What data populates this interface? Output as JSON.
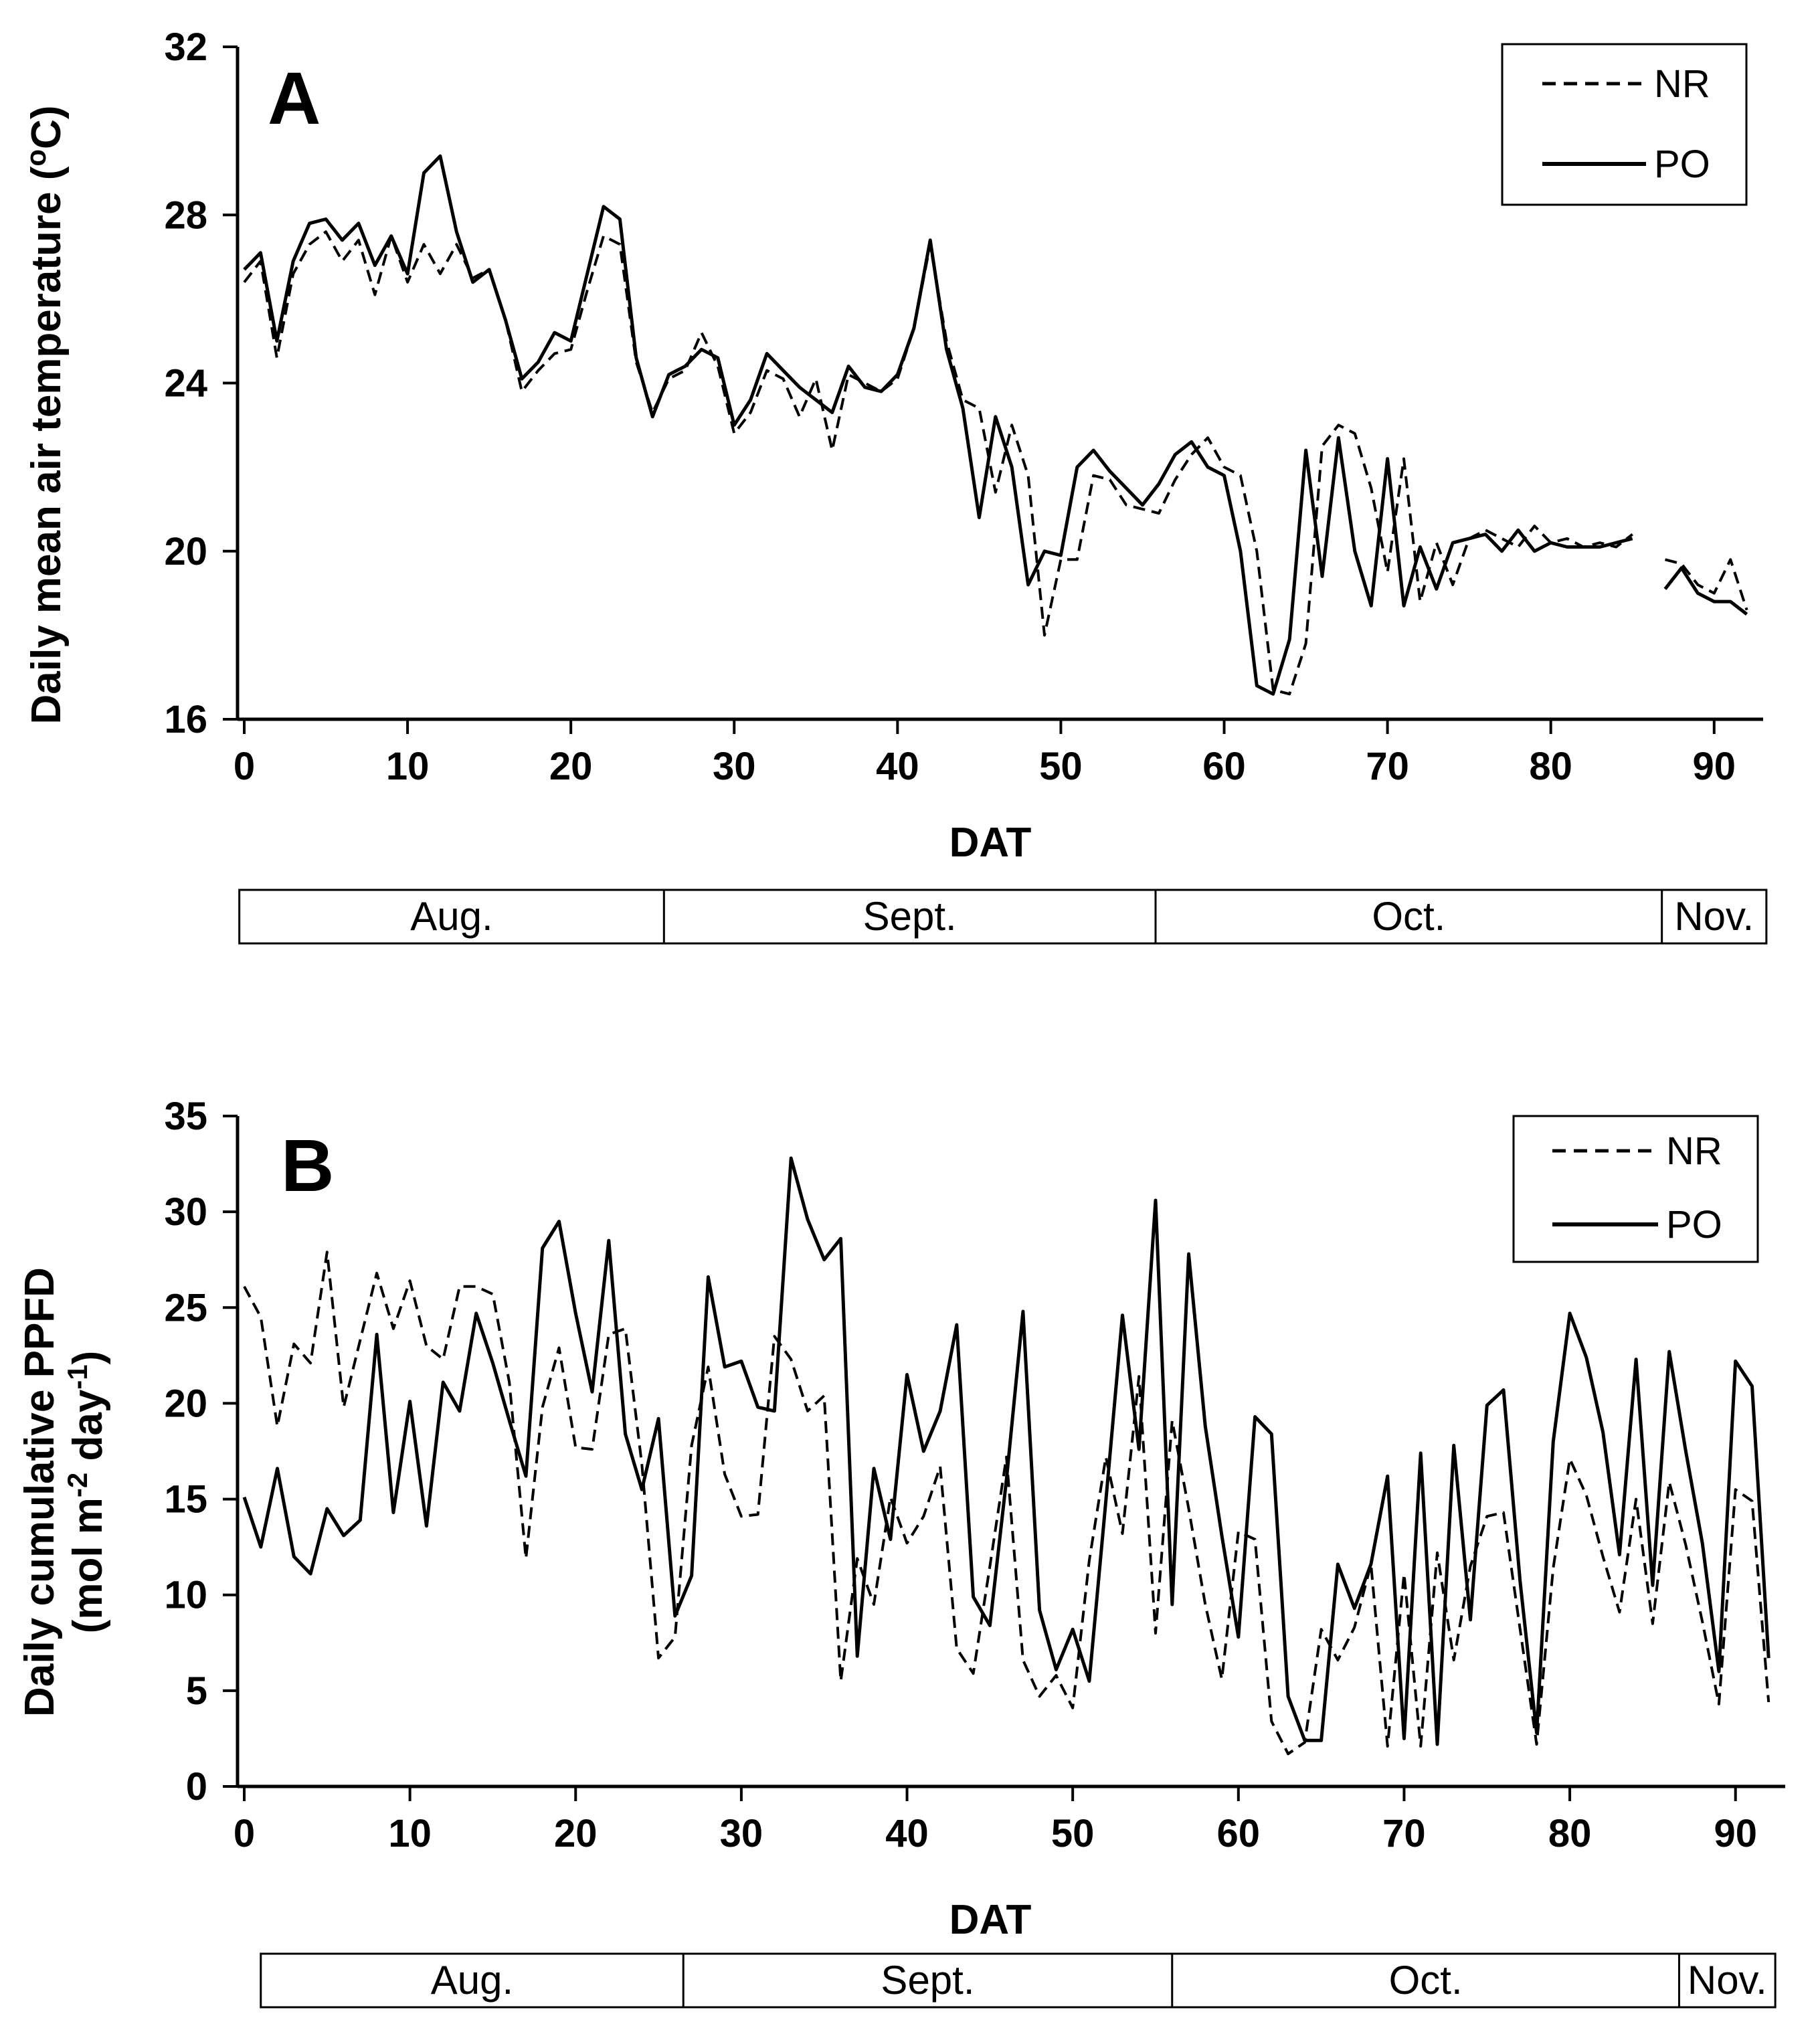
{
  "chart_data": [
    {
      "type": "line",
      "panel": "A",
      "xlabel": "DAT",
      "ylabel": "Daily mean air temperature (°C)",
      "ylabel_parts": {
        "pre": "Daily mean air temperature (",
        "sup": "o",
        "post": "C)"
      },
      "xlim": [
        0,
        93
      ],
      "ylim": [
        16,
        32
      ],
      "xticks": [
        0,
        10,
        20,
        30,
        40,
        50,
        60,
        70,
        80,
        90
      ],
      "yticks": [
        16,
        20,
        24,
        28,
        32
      ],
      "legend": [
        "NR",
        "PO"
      ],
      "months": [
        {
          "label": "Aug.",
          "start": -0.3,
          "end": 25.7
        },
        {
          "label": "Sept.",
          "start": 25.7,
          "end": 55.8
        },
        {
          "label": "Oct.",
          "start": 55.8,
          "end": 86.8
        },
        {
          "label": "Nov.",
          "start": 86.8,
          "end": 93.2
        }
      ],
      "series": [
        {
          "name": "NR",
          "style": "dashed",
          "x": [
            0,
            1,
            2,
            3,
            4,
            5,
            6,
            7,
            8,
            9,
            10,
            11,
            12,
            13,
            14,
            15,
            16,
            17,
            18,
            19,
            20,
            21,
            22,
            23,
            24,
            25,
            26,
            27,
            28,
            29,
            30,
            31,
            32,
            33,
            34,
            35,
            36,
            37,
            38,
            39,
            40,
            41,
            42,
            43,
            44,
            45,
            46,
            47,
            48,
            49,
            50,
            51,
            52,
            53,
            54,
            55,
            56,
            57,
            58,
            59,
            60,
            61,
            62,
            63,
            64,
            65,
            66,
            67,
            68,
            69,
            70,
            71,
            72,
            73,
            74,
            75,
            76,
            77,
            78,
            79,
            80,
            81,
            82,
            83,
            84,
            85,
            null,
            87,
            88,
            89,
            90,
            91,
            92
          ],
          "y": [
            26.4,
            26.9,
            24.6,
            26.6,
            27.3,
            27.6,
            26.9,
            27.4,
            26.1,
            27.5,
            26.4,
            27.3,
            26.6,
            27.3,
            26.5,
            26.7,
            25.5,
            23.8,
            24.3,
            24.7,
            24.8,
            26.2,
            27.5,
            27.3,
            24.5,
            23.3,
            24.1,
            24.3,
            25.2,
            24.4,
            22.8,
            23.3,
            24.3,
            24.1,
            23.2,
            24.1,
            22.4,
            24.2,
            24.0,
            23.8,
            24.1,
            25.3,
            27.3,
            25.0,
            23.6,
            23.4,
            21.4,
            23.0,
            21.8,
            18.0,
            19.8,
            19.8,
            21.8,
            21.7,
            21.1,
            21.0,
            20.9,
            21.7,
            22.3,
            22.7,
            22.0,
            21.8,
            20.0,
            16.7,
            16.6,
            17.8,
            22.5,
            23.0,
            22.8,
            21.5,
            19.5,
            22.2,
            18.8,
            20.2,
            19.2,
            20.3,
            20.5,
            20.3,
            20.1,
            20.6,
            20.2,
            20.3,
            20.1,
            20.2,
            20.1,
            20.4,
            null,
            19.8,
            19.7,
            19.2,
            19.0,
            19.8,
            18.6
          ]
        },
        {
          "name": "PO",
          "style": "solid",
          "x": [
            0,
            1,
            2,
            3,
            4,
            5,
            6,
            7,
            8,
            9,
            10,
            11,
            12,
            13,
            14,
            15,
            16,
            17,
            18,
            19,
            20,
            21,
            22,
            23,
            24,
            25,
            26,
            27,
            28,
            29,
            30,
            31,
            32,
            33,
            34,
            35,
            36,
            37,
            38,
            39,
            40,
            41,
            42,
            43,
            44,
            45,
            46,
            47,
            48,
            49,
            50,
            51,
            52,
            53,
            54,
            55,
            56,
            57,
            58,
            59,
            60,
            61,
            62,
            63,
            64,
            65,
            66,
            67,
            68,
            69,
            70,
            71,
            72,
            73,
            74,
            75,
            76,
            77,
            78,
            79,
            80,
            81,
            82,
            83,
            84,
            85,
            null,
            87,
            88,
            89,
            90,
            91,
            92
          ],
          "y": [
            26.7,
            27.1,
            25.0,
            26.9,
            27.8,
            27.9,
            27.4,
            27.8,
            26.8,
            27.5,
            26.6,
            29.0,
            29.4,
            27.6,
            26.4,
            26.7,
            25.5,
            24.1,
            24.5,
            25.2,
            25.0,
            26.6,
            28.2,
            27.9,
            24.6,
            23.2,
            24.2,
            24.4,
            24.8,
            24.6,
            23.0,
            23.6,
            24.7,
            24.3,
            23.9,
            23.6,
            23.3,
            24.4,
            23.9,
            23.8,
            24.2,
            25.3,
            27.4,
            24.8,
            23.4,
            20.8,
            23.2,
            22.0,
            19.2,
            20.0,
            19.9,
            22.0,
            22.4,
            21.9,
            21.5,
            21.1,
            21.6,
            22.3,
            22.6,
            22.0,
            21.8,
            20.0,
            16.8,
            16.6,
            17.9,
            22.4,
            19.4,
            22.7,
            20.0,
            18.7,
            22.2,
            18.7,
            20.1,
            19.1,
            20.2,
            20.3,
            20.4,
            20.0,
            20.5,
            20.0,
            20.2,
            20.1,
            20.1,
            20.1,
            20.2,
            20.3,
            null,
            19.1,
            19.6,
            19.0,
            18.8,
            18.8,
            18.5
          ]
        }
      ]
    },
    {
      "type": "line",
      "panel": "B",
      "xlabel": "DAT",
      "ylabel": "Daily cumulative PPFD (mol m⁻² day⁻¹)",
      "ylabel_line1": "Daily cumulative PPFD",
      "ylabel_line2_parts": {
        "a": "(mol m",
        "s1": "-2",
        "b": " day",
        "s2": "-1",
        "c": ")"
      },
      "xlim": [
        0,
        93
      ],
      "ylim": [
        0,
        35
      ],
      "xticks": [
        0,
        10,
        20,
        30,
        40,
        50,
        60,
        70,
        80,
        90
      ],
      "yticks": [
        0,
        5,
        10,
        15,
        20,
        25,
        30,
        35
      ],
      "legend": [
        "NR",
        "PO"
      ],
      "months": [
        {
          "label": "Aug.",
          "start": 1.0,
          "end": 26.5
        },
        {
          "label": "Sept.",
          "start": 26.5,
          "end": 56.0
        },
        {
          "label": "Oct.",
          "start": 56.0,
          "end": 86.6
        },
        {
          "label": "Nov.",
          "start": 86.6,
          "end": 92.4
        }
      ],
      "series": [
        {
          "name": "NR",
          "style": "dashed",
          "x": [
            0,
            1,
            2,
            3,
            4,
            5,
            6,
            7,
            8,
            9,
            10,
            11,
            12,
            13,
            14,
            15,
            16,
            17,
            18,
            19,
            20,
            21,
            22,
            23,
            24,
            25,
            26,
            27,
            28,
            29,
            30,
            31,
            32,
            33,
            34,
            35,
            36,
            37,
            38,
            39,
            40,
            41,
            42,
            43,
            44,
            45,
            46,
            47,
            48,
            49,
            50,
            51,
            52,
            53,
            54,
            55,
            56,
            57,
            58,
            59,
            60,
            61,
            62,
            63,
            64,
            65,
            66,
            67,
            68,
            69,
            70,
            71,
            72,
            73,
            74,
            75,
            76,
            77,
            78,
            79,
            80,
            81,
            82,
            83,
            84,
            85,
            86,
            87,
            88,
            89,
            90,
            91,
            92
          ],
          "y": [
            26.1,
            24.5,
            18.8,
            23.1,
            22.1,
            27.9,
            19.8,
            23.3,
            26.8,
            23.9,
            26.4,
            23.0,
            22.3,
            26.1,
            26.1,
            25.7,
            21.1,
            11.9,
            19.8,
            22.9,
            17.7,
            17.6,
            23.6,
            23.9,
            16.8,
            6.7,
            7.8,
            17.8,
            21.9,
            16.3,
            14.1,
            14.2,
            23.5,
            22.3,
            19.6,
            20.4,
            5.5,
            11.9,
            9.5,
            15.1,
            12.7,
            14.1,
            16.7,
            7.2,
            5.9,
            11.5,
            17.2,
            6.6,
            4.7,
            5.8,
            4.1,
            11.8,
            17.2,
            13.2,
            21.4,
            8.0,
            19.1,
            14.5,
            9.5,
            5.6,
            13.3,
            12.9,
            3.4,
            1.7,
            2.3,
            8.2,
            6.6,
            8.3,
            11.6,
            2.1,
            11.1,
            2.1,
            12.2,
            6.6,
            11.5,
            14.1,
            14.3,
            8.2,
            2.2,
            11.4,
            17.1,
            15.2,
            12.0,
            9.1,
            15.0,
            8.5,
            15.9,
            12.6,
            8.6,
            4.3,
            15.5,
            14.9,
            4.4
          ]
        },
        {
          "name": "PO",
          "style": "solid",
          "x": [
            0,
            1,
            2,
            3,
            4,
            5,
            6,
            7,
            8,
            9,
            10,
            11,
            12,
            13,
            14,
            15,
            16,
            17,
            18,
            19,
            20,
            21,
            22,
            23,
            24,
            25,
            26,
            27,
            28,
            29,
            30,
            31,
            32,
            33,
            34,
            35,
            36,
            37,
            38,
            39,
            40,
            41,
            42,
            43,
            44,
            45,
            46,
            47,
            48,
            49,
            50,
            51,
            52,
            53,
            54,
            55,
            56,
            57,
            58,
            59,
            60,
            61,
            62,
            63,
            64,
            65,
            66,
            67,
            68,
            69,
            70,
            71,
            72,
            73,
            74,
            75,
            76,
            77,
            78,
            79,
            80,
            81,
            82,
            83,
            84,
            85,
            86,
            87,
            88,
            89,
            90,
            91,
            92
          ],
          "y": [
            15.1,
            12.5,
            16.6,
            12.0,
            11.1,
            14.5,
            13.1,
            13.9,
            23.6,
            14.3,
            20.1,
            13.6,
            21.1,
            19.6,
            24.7,
            22.1,
            19.1,
            16.2,
            28.1,
            29.5,
            24.7,
            20.6,
            28.5,
            18.4,
            15.5,
            19.2,
            8.9,
            11.0,
            26.6,
            21.9,
            22.2,
            19.8,
            19.6,
            32.8,
            29.6,
            27.5,
            28.6,
            6.8,
            16.6,
            12.9,
            21.5,
            17.5,
            19.6,
            24.1,
            9.9,
            8.4,
            16.0,
            24.8,
            9.2,
            6.1,
            8.2,
            5.5,
            14.9,
            24.6,
            17.6,
            30.6,
            9.5,
            27.8,
            18.8,
            13.1,
            7.8,
            19.3,
            18.4,
            4.7,
            2.4,
            2.4,
            11.6,
            9.3,
            11.6,
            16.2,
            2.5,
            17.4,
            2.2,
            17.8,
            8.7,
            19.9,
            20.7,
            10.7,
            2.8,
            18.0,
            24.7,
            22.4,
            18.5,
            12.1,
            22.3,
            10.5,
            22.7,
            17.5,
            12.7,
            6.0,
            22.2,
            20.9,
            6.7
          ]
        }
      ]
    }
  ]
}
